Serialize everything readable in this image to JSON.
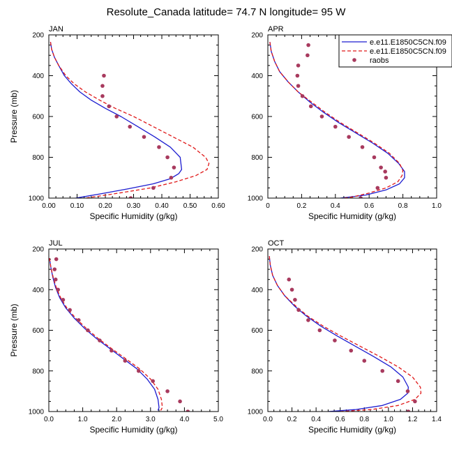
{
  "figure": {
    "title": "Resolute_Canada  latitude= 74.7 N longitude= 95 W"
  },
  "legend": {
    "entries": [
      {
        "label": "e.e11.E1850C5CN.f09",
        "style": "line",
        "color": "#1c1cd0"
      },
      {
        "label": "e.e11.E1850C5CN.f09",
        "style": "dash",
        "color": "#e01818"
      },
      {
        "label": "raobs",
        "style": "marker",
        "color": "#a83a5e"
      }
    ]
  },
  "chart_data": [
    {
      "type": "line",
      "panel": "JAN",
      "title": "JAN",
      "xlabel": "Specific Humidity (g/kg)",
      "ylabel": "Pressure (mb)",
      "xlim": [
        0,
        0.6
      ],
      "xticks": [
        0,
        0.1,
        0.2,
        0.3,
        0.4,
        0.5,
        0.6
      ],
      "xticklabels": [
        "0.00",
        "0.10",
        "0.20",
        "0.30",
        "0.40",
        "0.50",
        "0.60"
      ],
      "ylim": [
        200,
        1000
      ],
      "yticks": [
        200,
        400,
        600,
        800,
        1000
      ],
      "yticklabels": [
        "200",
        "400",
        "600",
        "800",
        "1000"
      ],
      "series": [
        {
          "name": "e.e11.E1850C5CN.f09",
          "style": "line",
          "color": "#1c1cd0",
          "x": [
            0.006,
            0.01,
            0.02,
            0.035,
            0.055,
            0.08,
            0.11,
            0.15,
            0.2,
            0.255,
            0.315,
            0.375,
            0.43,
            0.465,
            0.47,
            0.46,
            0.43,
            0.37,
            0.28,
            0.18,
            0.095
          ],
          "y": [
            235,
            270,
            310,
            350,
            400,
            440,
            480,
            520,
            560,
            600,
            650,
            700,
            750,
            800,
            860,
            880,
            905,
            930,
            955,
            980,
            1000
          ]
        },
        {
          "name": "e.e11.E1850C5CN.f09",
          "style": "dash",
          "color": "#e01818",
          "x": [
            0.006,
            0.01,
            0.02,
            0.035,
            0.06,
            0.09,
            0.13,
            0.18,
            0.235,
            0.3,
            0.37,
            0.44,
            0.51,
            0.555,
            0.567,
            0.56,
            0.52,
            0.45,
            0.36,
            0.25,
            0.13
          ],
          "y": [
            235,
            270,
            310,
            350,
            400,
            440,
            480,
            520,
            560,
            600,
            650,
            700,
            750,
            800,
            830,
            860,
            890,
            920,
            950,
            975,
            1000
          ]
        },
        {
          "name": "raobs",
          "style": "marker",
          "color": "#a83a5e",
          "x": [
            0.195,
            0.19,
            0.19,
            0.213,
            0.24,
            0.287,
            0.337,
            0.39,
            0.42,
            0.443,
            0.433,
            0.37,
            0.29
          ],
          "y": [
            400,
            450,
            500,
            550,
            600,
            650,
            700,
            750,
            800,
            850,
            900,
            950,
            1000
          ]
        }
      ]
    },
    {
      "type": "line",
      "panel": "APR",
      "title": "APR",
      "xlabel": "Specific Humidity (g/kg)",
      "ylabel": "Pressure (mb)",
      "xlim": [
        0,
        1.0
      ],
      "xticks": [
        0,
        0.2,
        0.4,
        0.6,
        0.8,
        1.0
      ],
      "xticklabels": [
        "0",
        "0.2",
        "0.4",
        "0.6",
        "0.8",
        "1.0"
      ],
      "ylim": [
        200,
        1000
      ],
      "yticks": [
        200,
        400,
        600,
        800,
        1000
      ],
      "yticklabels": [
        "200",
        "400",
        "600",
        "800",
        "1000"
      ],
      "series": [
        {
          "name": "e.e11.E1850C5CN.f09",
          "style": "line",
          "color": "#1c1cd0",
          "x": [
            0.012,
            0.02,
            0.04,
            0.07,
            0.12,
            0.18,
            0.25,
            0.33,
            0.42,
            0.52,
            0.62,
            0.71,
            0.775,
            0.81,
            0.81,
            0.78,
            0.7,
            0.58,
            0.38
          ],
          "y": [
            235,
            280,
            330,
            380,
            430,
            480,
            530,
            580,
            630,
            680,
            730,
            780,
            830,
            870,
            900,
            930,
            960,
            985,
            1005
          ]
        },
        {
          "name": "e.e11.E1850C5CN.f09",
          "style": "dash",
          "color": "#e01818",
          "x": [
            0.012,
            0.02,
            0.04,
            0.07,
            0.12,
            0.18,
            0.26,
            0.34,
            0.43,
            0.53,
            0.63,
            0.72,
            0.78,
            0.8,
            0.795,
            0.77,
            0.7,
            0.6,
            0.5,
            0.4
          ],
          "y": [
            235,
            280,
            330,
            380,
            430,
            480,
            530,
            580,
            630,
            680,
            730,
            780,
            830,
            865,
            890,
            920,
            950,
            975,
            995,
            1005
          ]
        },
        {
          "name": "raobs",
          "style": "marker",
          "color": "#a83a5e",
          "x": [
            0.24,
            0.235,
            0.18,
            0.175,
            0.18,
            0.205,
            0.255,
            0.32,
            0.4,
            0.48,
            0.56,
            0.63,
            0.67,
            0.695,
            0.7,
            0.65,
            0.55
          ],
          "y": [
            250,
            300,
            350,
            400,
            450,
            500,
            550,
            600,
            650,
            700,
            750,
            800,
            850,
            870,
            900,
            950,
            1000
          ]
        }
      ]
    },
    {
      "type": "line",
      "panel": "JUL",
      "title": "JUL",
      "xlabel": "Specific Humidity (g/kg)",
      "ylabel": "Pressure (mb)",
      "xlim": [
        0,
        5.0
      ],
      "xticks": [
        0,
        1,
        2,
        3,
        4,
        5
      ],
      "xticklabels": [
        "0.0",
        "1.0",
        "2.0",
        "3.0",
        "4.0",
        "5.0"
      ],
      "ylim": [
        200,
        1000
      ],
      "yticks": [
        200,
        400,
        600,
        800,
        1000
      ],
      "yticklabels": [
        "200",
        "400",
        "600",
        "800",
        "1000"
      ],
      "series": [
        {
          "name": "e.e11.E1850C5CN.f09",
          "style": "line",
          "color": "#1c1cd0",
          "x": [
            0.02,
            0.06,
            0.12,
            0.2,
            0.32,
            0.5,
            0.75,
            1.05,
            1.4,
            1.8,
            2.2,
            2.6,
            2.9,
            3.12,
            3.22,
            3.25,
            3.22
          ],
          "y": [
            245,
            290,
            340,
            390,
            440,
            490,
            540,
            590,
            640,
            690,
            740,
            790,
            840,
            890,
            940,
            980,
            995
          ]
        },
        {
          "name": "e.e11.E1850C5CN.f09",
          "style": "dash",
          "color": "#e01818",
          "x": [
            0.02,
            0.06,
            0.13,
            0.22,
            0.35,
            0.53,
            0.79,
            1.1,
            1.45,
            1.85,
            2.27,
            2.68,
            3.0,
            3.22,
            3.32,
            3.35,
            3.3
          ],
          "y": [
            245,
            290,
            340,
            390,
            440,
            490,
            540,
            590,
            640,
            690,
            740,
            790,
            840,
            890,
            940,
            980,
            995
          ]
        },
        {
          "name": "raobs",
          "style": "marker",
          "color": "#a83a5e",
          "x": [
            0.22,
            0.17,
            0.2,
            0.27,
            0.42,
            0.62,
            0.88,
            1.15,
            1.5,
            1.85,
            2.25,
            2.65,
            3.07,
            3.5,
            3.87,
            4.1
          ],
          "y": [
            250,
            300,
            350,
            400,
            450,
            500,
            550,
            600,
            650,
            700,
            750,
            800,
            850,
            900,
            950,
            1000
          ]
        }
      ]
    },
    {
      "type": "line",
      "panel": "OCT",
      "title": "OCT",
      "xlabel": "Specific Humidity (g/kg)",
      "ylabel": "Pressure (mb)",
      "xlim": [
        0,
        1.4
      ],
      "xticks": [
        0,
        0.2,
        0.4,
        0.6,
        0.8,
        1.0,
        1.2,
        1.4
      ],
      "xticklabels": [
        "0.0",
        "0.2",
        "0.4",
        "0.6",
        "0.8",
        "1.0",
        "1.2",
        "1.4"
      ],
      "ylim": [
        200,
        1000
      ],
      "yticks": [
        200,
        400,
        600,
        800,
        1000
      ],
      "yticklabels": [
        "200",
        "400",
        "600",
        "800",
        "1000"
      ],
      "series": [
        {
          "name": "e.e11.E1850C5CN.f09",
          "style": "line",
          "color": "#1c1cd0",
          "x": [
            0.012,
            0.02,
            0.04,
            0.08,
            0.14,
            0.22,
            0.32,
            0.44,
            0.58,
            0.73,
            0.88,
            1.02,
            1.12,
            1.165,
            1.16,
            1.1,
            0.95,
            0.73,
            0.5
          ],
          "y": [
            235,
            280,
            330,
            380,
            430,
            480,
            530,
            580,
            630,
            680,
            730,
            780,
            830,
            880,
            910,
            940,
            970,
            990,
            1000
          ]
        },
        {
          "name": "e.e11.E1850C5CN.f09",
          "style": "dash",
          "color": "#e01818",
          "x": [
            0.012,
            0.02,
            0.04,
            0.08,
            0.14,
            0.23,
            0.33,
            0.46,
            0.61,
            0.77,
            0.93,
            1.08,
            1.2,
            1.265,
            1.27,
            1.22,
            1.08,
            0.86,
            0.6
          ],
          "y": [
            235,
            280,
            330,
            380,
            430,
            480,
            530,
            580,
            630,
            680,
            730,
            780,
            830,
            880,
            910,
            940,
            970,
            990,
            1000
          ]
        },
        {
          "name": "raobs",
          "style": "marker",
          "color": "#a83a5e",
          "x": [
            0.175,
            0.2,
            0.225,
            0.255,
            0.335,
            0.43,
            0.555,
            0.69,
            0.8,
            0.95,
            1.08,
            1.16,
            1.22,
            1.165
          ],
          "y": [
            350,
            400,
            450,
            500,
            550,
            600,
            650,
            700,
            750,
            800,
            850,
            900,
            950,
            1000
          ]
        }
      ]
    }
  ]
}
